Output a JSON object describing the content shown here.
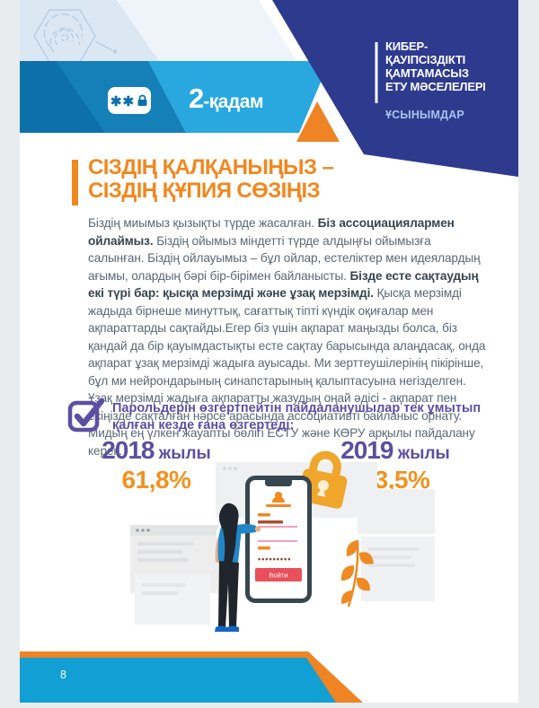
{
  "header": {
    "step_number": "2",
    "step_suffix": "-қадам",
    "password_chip_stars": "✱✱",
    "topic_lines": [
      "КИБЕР-",
      "ҚАУІПСІЗДІКТІ",
      "ҚАМТАМАСЫЗ",
      "ЕТУ МӘСЕЛЕЛЕРІ"
    ],
    "badge": "ҰСЫНЫМДАР"
  },
  "title": {
    "lines": [
      "СІЗДІҢ ҚАЛҚАНЫҢЫЗ –",
      "СІЗДІҢ ҚҰПИЯ СӨЗІҢІЗ"
    ]
  },
  "body": {
    "segments": [
      {
        "text": "Біздің миымыз қызықты түрде жасалған. ",
        "bold": false
      },
      {
        "text": "Біз ассоциациялармен ойлаймыз.",
        "bold": true
      },
      {
        "text": " Біздің ойымыз міндетті түрде алдыңғы ойымызға салынған. Біздің ойлауымыз – бұл ойлар, естеліктер мен идеялардың ағымы, олардың бәрі бір-бірімен байланысты. ",
        "bold": false
      },
      {
        "text": "Бізде есте сақтаудың екі түрі бар: қысқа мерзімді және ұзақ мерзімді.",
        "bold": true
      },
      {
        "text": " Қысқа мерзімді жадыда бірнеше минуттық, сағаттық тіпті күндік оқиғалар мен ақпараттарды сақтайды.Егер біз үшін ақпарат маңызды болса, біз қандай да бір қауымдастықты есте сақтау барысында алаңдасақ, онда ақпарат ұзақ мерзімді жадыға ауысады. Ми зерттеушілерінің пікірінше, бұл ми нейрондарының синапстарының қалыптасуына негізделген. Ұзақ мерзімді жадыға ақпаратты жазудың оңай әдісі - ақпарат пен есіңізде сақталған нәрсе арасында ассоциативті байланыс орнату. Мидың ең үлкен жауапты бөлігі ЕСТУ және КӨРУ арқылы пайдалану керек.",
        "bold": false
      }
    ]
  },
  "callout": {
    "text": "Парольдерін өзгертпейтін пайдаланушылар тек ұмытып қалған  кезде ғана өзгертеді:"
  },
  "stats": [
    {
      "year": "2018",
      "suffix": " жылы",
      "value": "61,8%"
    },
    {
      "year": "2019",
      "suffix": " жылы",
      "value": "53,5%"
    }
  ],
  "illustration": {
    "login_button_label": "Войти",
    "password_mask": "•••••••••"
  },
  "footer": {
    "page_number": "8"
  },
  "colors": {
    "accent_orange": "#ee8423",
    "title_orange": "#f0881f",
    "purple": "#5c4fa3",
    "navy": "#2e3a8e",
    "banner_cyan": "#29a8e0",
    "banner_blue": "#0d70aa",
    "footer_blue": "#119fd4",
    "button_red": "#e8505b"
  }
}
